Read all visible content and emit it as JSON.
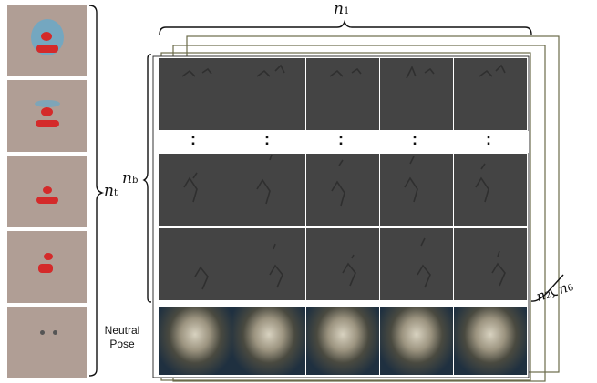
{
  "labels": {
    "n1": "n",
    "n1_sub": "1",
    "nb": "n",
    "nb_sub": "b",
    "nt": "n",
    "nt_sub": "t",
    "n2n6": "n",
    "n2_sub": "2",
    "n6_mid": ", n",
    "n6_sub": "6",
    "neutral_line1": "Neutral",
    "neutral_line2": "Pose",
    "ellipsis": ":"
  },
  "colors": {
    "texture_bg": "#b09e95",
    "blendshape_bg": "#444444",
    "frame_stroke": "#6b6b4a",
    "clown_red": "#d42a2a",
    "clown_blue": "#6aa8c8"
  }
}
